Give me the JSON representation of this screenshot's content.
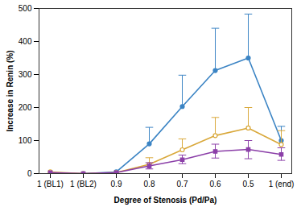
{
  "chart_data": {
    "type": "line",
    "x_label": "Degree of Stenosis (Pd/Pa)",
    "y_label": "Increase in Renin (%)",
    "categories": [
      "1 (BL1)",
      "1 (BL2)",
      "0.9",
      "0.8",
      "0.7",
      "0.6",
      "0.5",
      "1 (end)"
    ],
    "ylim": [
      0,
      500
    ],
    "yticks": [
      0,
      100,
      200,
      300,
      400,
      500
    ],
    "series": [
      {
        "color": "#3b84c4",
        "marker": "circle",
        "values": [
          0,
          0,
          5,
          90,
          203,
          312,
          350,
          100
        ],
        "errors_up": [
          null,
          null,
          null,
          50,
          95,
          128,
          133,
          43
        ],
        "errors_down": [
          null,
          null,
          null,
          null,
          null,
          null,
          null,
          null
        ]
      },
      {
        "color": "#d9a83a",
        "marker": "open_circle",
        "values": [
          5,
          0,
          3,
          28,
          72,
          115,
          138,
          88
        ],
        "errors_up": [
          null,
          null,
          null,
          20,
          33,
          55,
          62,
          42
        ],
        "errors_down": [
          null,
          null,
          null,
          null,
          null,
          null,
          null,
          null
        ]
      },
      {
        "color": "#8b3fa8",
        "marker": "square",
        "values": [
          3,
          0,
          3,
          23,
          42,
          67,
          73,
          58
        ],
        "errors_up": [
          null,
          null,
          null,
          10,
          14,
          22,
          27,
          20
        ],
        "errors_down": [
          null,
          null,
          null,
          9,
          12,
          20,
          28,
          18
        ]
      }
    ]
  }
}
